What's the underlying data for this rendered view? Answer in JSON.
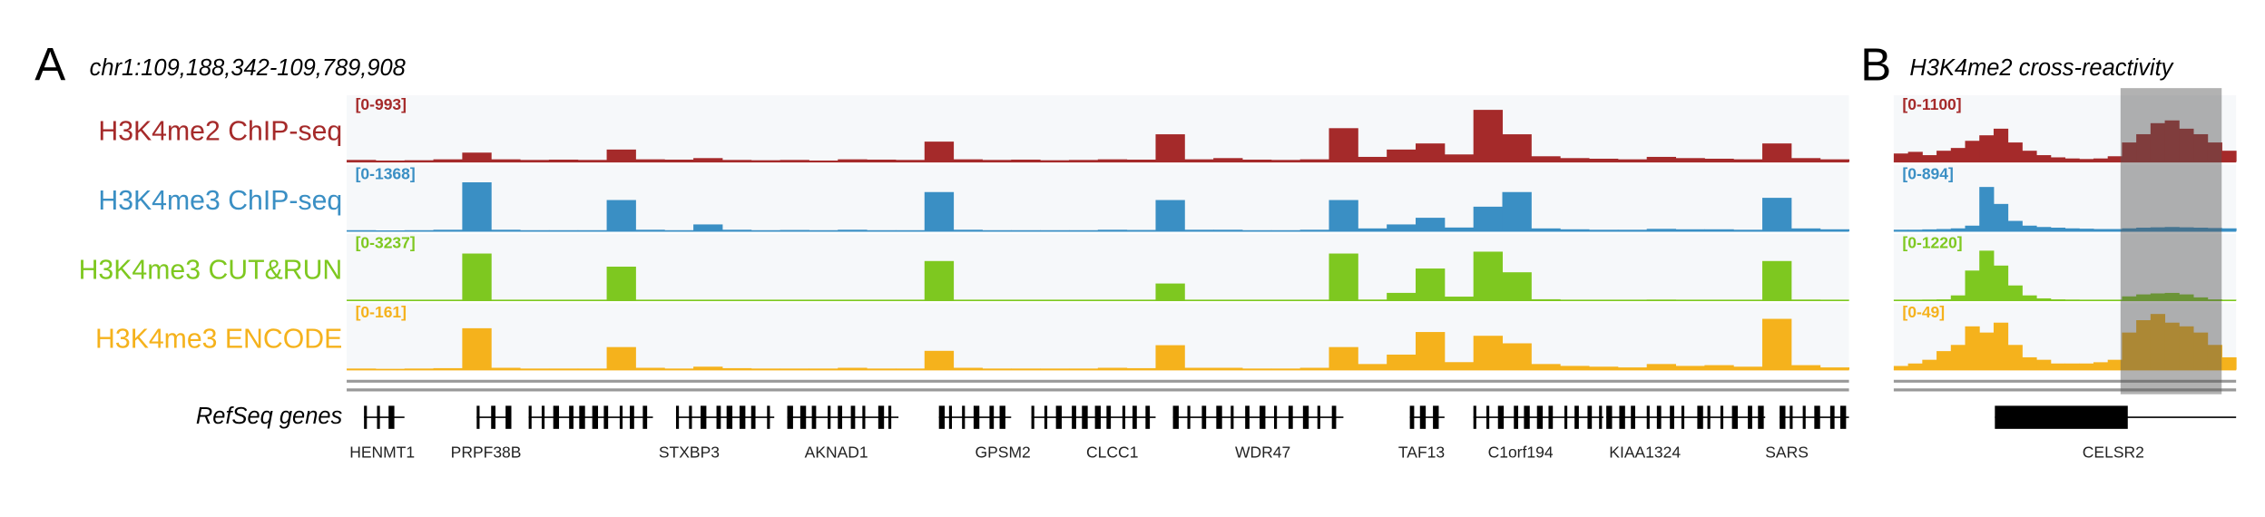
{
  "panel_a": {
    "letter": "A",
    "locus": "chr1:109,188,342-109,789,908",
    "genes_label": "RefSeq genes",
    "genes": [
      "HENMT1",
      "PRPF38B",
      "STXBP3",
      "AKNAD1",
      "GPSM2",
      "CLCC1",
      "WDR47",
      "TAF13",
      "C1orf194",
      "KIAA1324",
      "SARS"
    ],
    "tracks": [
      {
        "name": "H3K4me2 ChIP-seq",
        "color": "#a52a2a",
        "range_label": "[0-993]",
        "max": 993,
        "values": [
          30,
          20,
          25,
          40,
          150,
          40,
          30,
          35,
          30,
          200,
          40,
          35,
          60,
          30,
          25,
          30,
          20,
          40,
          35,
          30,
          330,
          40,
          30,
          35,
          25,
          30,
          40,
          35,
          450,
          40,
          60,
          35,
          30,
          40,
          550,
          80,
          200,
          300,
          120,
          850,
          450,
          90,
          60,
          50,
          40,
          80,
          60,
          50,
          40,
          300,
          60,
          40
        ]
      },
      {
        "name": "H3K4me3 ChIP-seq",
        "color": "#3a8fc4",
        "range_label": "[0-1368]",
        "max": 1368,
        "values": [
          20,
          15,
          20,
          30,
          1100,
          30,
          20,
          20,
          20,
          700,
          30,
          20,
          150,
          30,
          20,
          25,
          20,
          30,
          20,
          20,
          880,
          30,
          20,
          20,
          20,
          20,
          30,
          25,
          700,
          30,
          30,
          20,
          20,
          30,
          700,
          60,
          150,
          300,
          80,
          550,
          880,
          60,
          40,
          30,
          30,
          50,
          40,
          40,
          30,
          750,
          60,
          40
        ]
      },
      {
        "name": "H3K4me3 CUT&RUN",
        "color": "#7ec820",
        "range_label": "[0-3237]",
        "max": 3237,
        "values": [
          10,
          10,
          10,
          10,
          2500,
          20,
          10,
          10,
          10,
          1800,
          20,
          10,
          30,
          10,
          10,
          10,
          10,
          20,
          10,
          10,
          2100,
          20,
          10,
          10,
          10,
          10,
          20,
          10,
          900,
          20,
          20,
          10,
          10,
          20,
          2500,
          40,
          400,
          1700,
          200,
          2600,
          1500,
          60,
          30,
          20,
          20,
          40,
          30,
          30,
          20,
          2100,
          40,
          20
        ]
      },
      {
        "name": "H3K4me3 ENCODE",
        "color": "#f5b21c",
        "range_label": "[0-161]",
        "max": 161,
        "values": [
          3,
          2,
          3,
          4,
          110,
          5,
          3,
          3,
          3,
          60,
          5,
          3,
          8,
          4,
          3,
          3,
          3,
          5,
          3,
          3,
          50,
          5,
          3,
          3,
          3,
          3,
          5,
          4,
          65,
          5,
          5,
          3,
          3,
          5,
          60,
          15,
          40,
          100,
          20,
          90,
          70,
          15,
          10,
          8,
          6,
          15,
          10,
          12,
          8,
          135,
          12,
          6
        ]
      }
    ]
  },
  "panel_b": {
    "letter": "B",
    "title": "H3K4me2 cross-reactivity",
    "genes": [
      "CELSR2"
    ],
    "tracks": [
      {
        "color": "#a52a2a",
        "range_label": "[0-1100]",
        "max": 1100,
        "values": [
          150,
          180,
          120,
          200,
          250,
          380,
          480,
          600,
          350,
          200,
          120,
          80,
          60,
          50,
          60,
          100,
          350,
          500,
          700,
          750,
          600,
          500,
          350,
          200
        ]
      },
      {
        "color": "#3a8fc4",
        "range_label": "[0-894]",
        "max": 894,
        "values": [
          20,
          20,
          25,
          30,
          40,
          80,
          650,
          400,
          150,
          80,
          60,
          50,
          40,
          35,
          30,
          30,
          40,
          50,
          55,
          60,
          55,
          50,
          45,
          40
        ]
      },
      {
        "color": "#7ec820",
        "range_label": "[0-1220]",
        "max": 1220,
        "values": [
          10,
          10,
          15,
          20,
          100,
          600,
          1000,
          700,
          300,
          100,
          40,
          20,
          15,
          10,
          10,
          10,
          80,
          120,
          140,
          150,
          120,
          60,
          20,
          10
        ]
      },
      {
        "color": "#f5b21c",
        "range_label": "[0-49]",
        "max": 49,
        "values": [
          3,
          5,
          8,
          15,
          20,
          35,
          30,
          38,
          20,
          10,
          8,
          5,
          5,
          5,
          6,
          8,
          30,
          40,
          45,
          38,
          35,
          30,
          20,
          10
        ]
      }
    ]
  }
}
